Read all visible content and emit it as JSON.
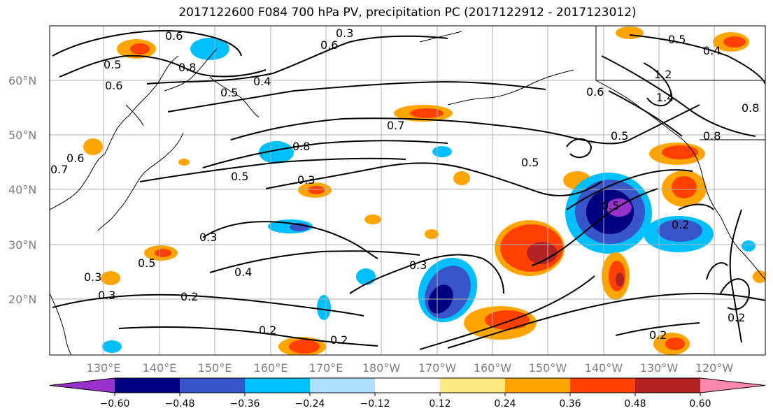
{
  "title": "2017122600 F084 700 hPa PV, precipitation PC (2017122912 - 2017123012)",
  "lat_labels": [
    "60°N",
    "50°N",
    "40°N",
    "30°N",
    "20°N"
  ],
  "lon_labels": [
    "130°E",
    "140°E",
    "150°E",
    "160°E",
    "170°E",
    "180°W",
    "170°W",
    "160°W",
    "150°W",
    "140°W",
    "130°W",
    "120°W"
  ],
  "colorbar": {
    "ticks": [
      "−0.60",
      "−0.48",
      "−0.36",
      "−0.24",
      "−0.12",
      "0.12",
      "0.24",
      "0.36",
      "0.48",
      "0.60"
    ],
    "colors": [
      "#9932cc",
      "#000080",
      "#3755c8",
      "#00bfff",
      "#b0e0ff",
      "#ffffff",
      "#ffea80",
      "#ffa500",
      "#ff4000",
      "#b22222",
      "#ff88b0"
    ]
  },
  "contour_labels": [
    "0.6",
    "0.5",
    "0.6",
    "0.8",
    "0.5",
    "0.4",
    "0.6",
    "0.3",
    "0.7",
    "0.8",
    "0.5",
    "0.3",
    "0.5",
    "0.6",
    "0.7",
    "0.4",
    "0.3",
    "0.2",
    "0.3",
    "0.2",
    "0.2",
    "0.3",
    "0.2",
    "0.5",
    "0.5",
    "0.2",
    "0.2",
    "0.8",
    "1.2",
    "1.4",
    "0.8",
    "0.4",
    "0.5",
    "0.6",
    "0.3",
    "0.5"
  ]
}
